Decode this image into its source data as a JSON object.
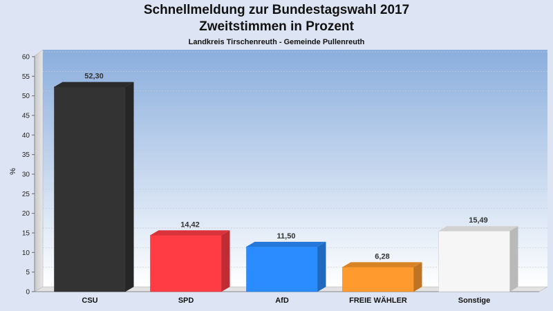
{
  "header": {
    "title_line1": "Schnellmeldung zur Bundestagswahl 2017",
    "title_line2": "Zweitstimmen in Prozent",
    "subtitle": "Landkreis Tirschenreuth - Gemeinde Pullenreuth"
  },
  "chart_data": {
    "type": "bar",
    "title": "Schnellmeldung zur Bundestagswahl 2017 / Zweitstimmen in Prozent",
    "subtitle": "Landkreis Tirschenreuth - Gemeinde Pullenreuth",
    "xlabel": "",
    "ylabel": "%",
    "ylim": [
      0,
      60
    ],
    "yticks": [
      0,
      5,
      10,
      15,
      20,
      25,
      30,
      35,
      40,
      45,
      50,
      55,
      60
    ],
    "grid": true,
    "categories": [
      "CSU",
      "SPD",
      "AfD",
      "FREIE WÄHLER",
      "Sonstige"
    ],
    "values": [
      52.3,
      14.42,
      11.5,
      6.28,
      15.49
    ],
    "value_labels": [
      "52,30",
      "14,42",
      "11,50",
      "6,28",
      "15,49"
    ],
    "colors": [
      "#333333",
      "#ff3b44",
      "#2b8cff",
      "#ff9a2e",
      "#f6f6f6"
    ]
  }
}
